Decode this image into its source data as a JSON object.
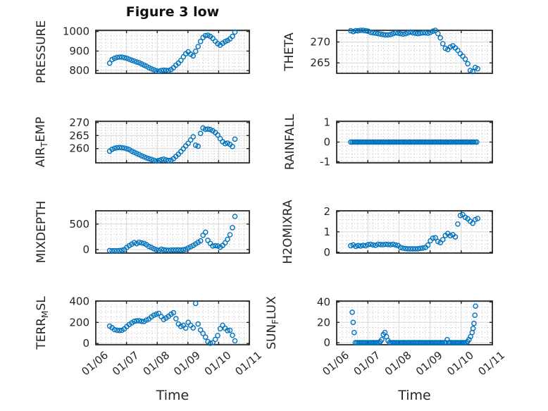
{
  "figure": {
    "title": "Figure 3 low",
    "background": "#ffffff"
  },
  "axes": {
    "x_label": "Time",
    "x_tick_labels": [
      "01/06",
      "01/07",
      "01/08",
      "01/09",
      "01/10",
      "01/11"
    ],
    "x_tick_positions_days": [
      0,
      1,
      2,
      3,
      4,
      5
    ],
    "x_unit": "days after 01/06",
    "grid": "on",
    "minor_grid": "on"
  },
  "style": {
    "marker_color": "#0072BD",
    "axis_color": "#212121",
    "text_color": "#262626",
    "grid_color": "#d6d6d6",
    "minor_grid_color": "#9a9a9a"
  },
  "x_days_common": [
    0.45,
    0.53,
    0.61,
    0.69,
    0.77,
    0.85,
    0.93,
    1.01,
    1.09,
    1.17,
    1.25,
    1.33,
    1.41,
    1.49,
    1.57,
    1.65,
    1.73,
    1.81,
    1.89,
    1.97,
    2.05,
    2.13,
    2.21,
    2.29,
    2.37,
    2.45,
    2.53,
    2.61,
    2.69,
    2.77,
    2.85,
    2.93,
    3.01,
    3.09,
    3.17,
    3.25,
    3.33,
    3.41,
    3.49,
    3.57,
    3.65,
    3.73,
    3.81,
    3.89,
    3.97,
    4.05,
    4.13,
    4.21,
    4.29,
    4.37,
    4.45,
    4.53
  ],
  "chart_data": [
    {
      "type": "scatter",
      "ylabel": "PRESSURE",
      "ylabel_parts": {
        "pre": "PRESSURE",
        "sub": "",
        "post": ""
      },
      "yticks": [
        800,
        900,
        1000
      ],
      "ylim": [
        786,
        1006
      ],
      "yminor": 20,
      "x": "common",
      "y": [
        838,
        856,
        863,
        867,
        869,
        869,
        866,
        863,
        858,
        853,
        849,
        844,
        840,
        834,
        828,
        822,
        815,
        809,
        804,
        799,
        797,
        800,
        802,
        801,
        800,
        805,
        815,
        828,
        838,
        852,
        870,
        886,
        896,
        884,
        875,
        899,
        923,
        949,
        969,
        979,
        981,
        975,
        965,
        950,
        938,
        930,
        940,
        948,
        954,
        962,
        975,
        997
      ]
    },
    {
      "type": "scatter",
      "ylabel": "THETA",
      "ylabel_parts": {
        "pre": "THETA",
        "sub": "",
        "post": ""
      },
      "yticks": [
        265,
        270
      ],
      "ylim": [
        262.5,
        272.8
      ],
      "yminor": 1,
      "x": "common",
      "y": [
        272.7,
        272.5,
        272.7,
        272.7,
        272.8,
        272.8,
        272.7,
        272.6,
        272.3,
        272.2,
        272.1,
        272.0,
        271.9,
        271.8,
        271.7,
        271.7,
        271.8,
        272.0,
        272.2,
        272.1,
        272.0,
        271.9,
        272.0,
        272.2,
        272.4,
        272.2,
        272.1,
        272.0,
        272.1,
        272.2,
        272.2,
        272.1,
        272.3,
        272.6,
        272.8,
        272.0,
        271.0,
        269.6,
        268.5,
        268.2,
        268.8,
        269.1,
        268.6,
        268.0,
        267.2,
        266.6,
        265.9,
        264.8,
        263.2,
        262.9,
        263.9,
        263.6
      ]
    },
    {
      "type": "scatter",
      "ylabel": "AIR_TEMP",
      "ylabel_parts": {
        "pre": "AIR",
        "sub": "T",
        "post": "EMP"
      },
      "yticks": [
        260,
        265,
        270
      ],
      "ylim": [
        254.5,
        270.5
      ],
      "yminor": 1,
      "x": "common",
      "y": [
        259.0,
        259.7,
        260.1,
        260.3,
        260.4,
        260.3,
        260.2,
        259.9,
        259.6,
        259.0,
        258.6,
        258.1,
        257.7,
        257.2,
        256.8,
        256.4,
        256.1,
        255.8,
        255.5,
        255.2,
        255.4,
        255.7,
        255.9,
        255.6,
        255.4,
        255.5,
        256.1,
        257.0,
        257.8,
        258.8,
        259.9,
        261.0,
        262.0,
        263.3,
        264.5,
        261.3,
        260.9,
        265.8,
        267.9,
        267.4,
        267.5,
        267.3,
        266.8,
        266.2,
        265.2,
        263.8,
        262.6,
        261.9,
        262.1,
        261.6,
        260.8,
        263.6
      ]
    },
    {
      "type": "scatter",
      "ylabel": "RAINFALL",
      "ylabel_parts": {
        "pre": "RAINFALL",
        "sub": "",
        "post": ""
      },
      "yticks": [
        -1,
        0,
        1
      ],
      "ylim": [
        -1.06,
        1.06
      ],
      "yminor": 0.2,
      "x": [
        0.45,
        0.5,
        0.55,
        0.6,
        0.65,
        0.7,
        0.75,
        0.8,
        0.85,
        0.9,
        0.95,
        1,
        1.05,
        1.1,
        1.15,
        1.2,
        1.25,
        1.3,
        1.35,
        1.4,
        1.45,
        1.5,
        1.55,
        1.6,
        1.65,
        1.7,
        1.75,
        1.8,
        1.85,
        1.9,
        1.95,
        2,
        2.05,
        2.1,
        2.15,
        2.2,
        2.25,
        2.3,
        2.35,
        2.4,
        2.45,
        2.5,
        2.55,
        2.6,
        2.65,
        2.7,
        2.75,
        2.8,
        2.85,
        2.9,
        2.95,
        3,
        3.05,
        3.1,
        3.15,
        3.2,
        3.25,
        3.3,
        3.35,
        3.4,
        3.45,
        3.5,
        3.55,
        3.6,
        3.65,
        3.7,
        3.75,
        3.8,
        3.85,
        3.9,
        3.95,
        4,
        4.05,
        4.1,
        4.15,
        4.2,
        4.25,
        4.3,
        4.35,
        4.4,
        4.45,
        4.5
      ],
      "y": [
        0,
        0,
        0,
        0,
        0,
        0,
        0,
        0,
        0,
        0,
        0,
        0,
        0,
        0,
        0,
        0,
        0,
        0,
        0,
        0,
        0,
        0,
        0,
        0,
        0,
        0,
        0,
        0,
        0,
        0,
        0,
        0,
        0,
        0,
        0,
        0,
        0,
        0,
        0,
        0,
        0,
        0,
        0,
        0,
        0,
        0,
        0,
        0,
        0,
        0,
        0,
        0,
        0,
        0,
        0,
        0,
        0,
        0,
        0,
        0,
        0,
        0,
        0,
        0,
        0,
        0,
        0,
        0,
        0,
        0,
        0,
        0,
        0,
        0,
        0,
        0,
        0,
        0,
        0,
        0,
        0,
        0
      ]
    },
    {
      "type": "scatter",
      "ylabel": "MIXDEPTH",
      "ylabel_parts": {
        "pre": "MIXDEPTH",
        "sub": "",
        "post": ""
      },
      "yticks": [
        0,
        500
      ],
      "ylim": [
        -70,
        760
      ],
      "yminor": 100,
      "x": "common",
      "y": [
        -20,
        -25,
        -22,
        -25,
        -20,
        -15,
        0,
        40,
        75,
        105,
        135,
        115,
        140,
        130,
        120,
        95,
        60,
        40,
        15,
        -5,
        -15,
        5,
        -5,
        -12,
        -15,
        -12,
        -10,
        -10,
        -8,
        -10,
        -5,
        5,
        30,
        55,
        80,
        110,
        140,
        170,
        280,
        340,
        180,
        120,
        70,
        75,
        70,
        45,
        80,
        130,
        200,
        290,
        430,
        650
      ]
    },
    {
      "type": "scatter",
      "ylabel": "H2OMIXRA",
      "ylabel_parts": {
        "pre": "H2OMIXRA",
        "sub": "",
        "post": ""
      },
      "yticks": [
        0,
        1,
        2
      ],
      "ylim": [
        -0.04,
        2.03
      ],
      "yminor": 0.2,
      "x": "common",
      "y": [
        0.32,
        0.36,
        0.29,
        0.33,
        0.31,
        0.34,
        0.32,
        0.37,
        0.39,
        0.36,
        0.34,
        0.39,
        0.38,
        0.37,
        0.39,
        0.38,
        0.37,
        0.39,
        0.36,
        0.33,
        0.24,
        0.2,
        0.18,
        0.17,
        0.17,
        0.17,
        0.17,
        0.17,
        0.19,
        0.21,
        0.24,
        0.35,
        0.56,
        0.69,
        0.71,
        0.53,
        0.47,
        0.62,
        0.82,
        0.92,
        0.81,
        0.86,
        0.75,
        1.38,
        1.8,
        1.84,
        1.71,
        1.64,
        1.52,
        1.42,
        1.6,
        1.65
      ]
    },
    {
      "type": "scatter",
      "ylabel": "TERR_MSL",
      "ylabel_parts": {
        "pre": "TERR",
        "sub": "M",
        "post": "SL"
      },
      "yticks": [
        0,
        200,
        400
      ],
      "ylim": [
        -12,
        403
      ],
      "yminor": 50,
      "x": "common",
      "y": [
        165,
        150,
        132,
        125,
        123,
        125,
        138,
        160,
        180,
        195,
        210,
        215,
        216,
        210,
        208,
        222,
        232,
        252,
        268,
        278,
        286,
        255,
        228,
        242,
        258,
        278,
        292,
        235,
        185,
        163,
        172,
        145,
        200,
        172,
        148,
        380,
        185,
        128,
        95,
        60,
        18,
        2,
        8,
        38,
        75,
        140,
        172,
        145,
        122,
        125,
        78,
        25
      ]
    },
    {
      "type": "scatter",
      "ylabel": "SUN_FLUX",
      "ylabel_parts": {
        "pre": "SUN",
        "sub": "F",
        "post": "LUX"
      },
      "yticks": [
        0,
        20,
        40
      ],
      "ylim": [
        -2,
        41
      ],
      "yminor": 5,
      "x": [
        0.5,
        0.53,
        0.56,
        0.6,
        0.65,
        0.7,
        0.75,
        0.8,
        0.85,
        0.9,
        0.95,
        1,
        1.05,
        1.1,
        1.15,
        1.2,
        1.25,
        1.3,
        1.35,
        1.4,
        1.45,
        1.5,
        1.55,
        1.6,
        1.65,
        1.7,
        1.75,
        1.8,
        1.85,
        1.9,
        1.95,
        2,
        2.05,
        2.1,
        2.15,
        2.2,
        2.25,
        2.3,
        2.35,
        2.4,
        2.45,
        2.5,
        2.55,
        2.6,
        2.65,
        2.7,
        2.75,
        2.8,
        2.85,
        2.9,
        2.95,
        3,
        3.05,
        3.1,
        3.15,
        3.2,
        3.25,
        3.3,
        3.35,
        3.4,
        3.45,
        3.5,
        3.55,
        3.6,
        3.65,
        3.7,
        3.75,
        3.8,
        3.85,
        3.9,
        3.95,
        4,
        4.05,
        4.1,
        4.15,
        4.2,
        4.25,
        4.3,
        4.35,
        4.38,
        4.41,
        4.44,
        4.46
      ],
      "y": [
        30,
        20,
        10,
        0,
        0,
        0,
        0,
        0,
        0,
        0,
        0,
        0,
        0,
        0,
        0,
        0,
        0,
        0,
        0,
        1,
        3,
        8,
        10,
        6,
        2,
        0,
        0,
        0,
        0,
        0,
        0,
        0,
        0,
        0,
        0,
        0,
        0,
        0,
        0,
        0,
        0,
        0,
        0,
        0,
        0,
        0,
        0,
        0,
        0,
        0,
        0,
        0,
        0,
        0,
        0,
        0,
        0,
        0,
        0,
        0,
        0,
        0,
        3,
        0,
        0,
        0,
        0,
        0,
        0,
        0,
        0,
        0,
        0,
        0,
        0,
        1,
        3,
        6,
        10,
        14,
        19,
        27,
        36
      ]
    }
  ]
}
